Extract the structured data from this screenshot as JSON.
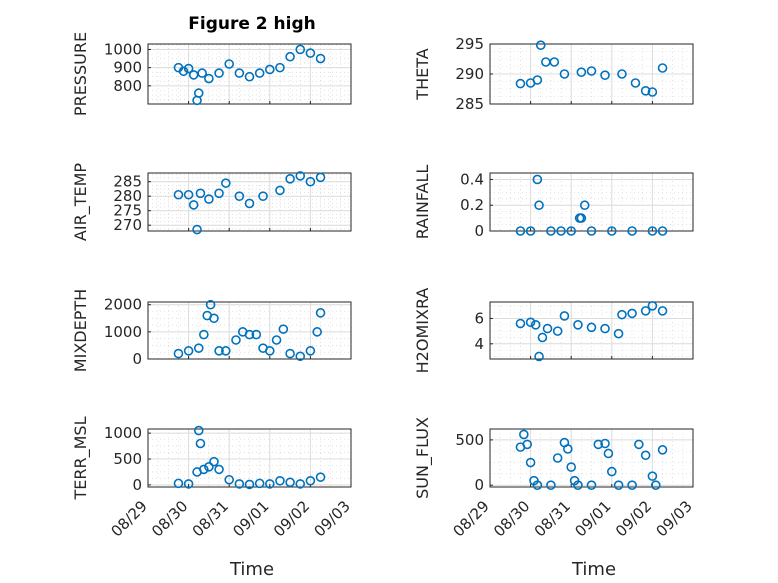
{
  "figure": {
    "title": "Figure 2 high",
    "xlabel": "Time",
    "marker_color": "#0072BD",
    "grid": "major and minor dotted",
    "x_ticks": [
      "08/29",
      "08/30",
      "08/31",
      "09/01",
      "09/02",
      "09/03"
    ]
  },
  "chart_data": [
    {
      "id": "pressure",
      "type": "scatter",
      "ylabel": "PRESSURE",
      "title": "Figure 2 high",
      "ylim": [
        700,
        1030
      ],
      "yticks": [
        800,
        900,
        1000
      ],
      "x": [
        "08/29 18:00",
        "08/29 21:00",
        "08/30 00:00",
        "08/30 03:00",
        "08/30 05:00",
        "08/30 06:00",
        "08/30 08:00",
        "08/30 12:00",
        "08/30 18:00",
        "08/31 00:00",
        "08/31 06:00",
        "08/31 12:00",
        "08/31 18:00",
        "09/01 00:00",
        "09/01 06:00",
        "09/01 12:00",
        "09/01 18:00",
        "09/02 00:00",
        "09/02 06:00"
      ],
      "y": [
        900,
        880,
        895,
        860,
        720,
        760,
        870,
        840,
        870,
        920,
        870,
        850,
        870,
        890,
        900,
        960,
        1000,
        980,
        950
      ]
    },
    {
      "id": "theta",
      "type": "scatter",
      "ylabel": "THETA",
      "ylim": [
        285,
        295
      ],
      "yticks": [
        285,
        290,
        295
      ],
      "x": [
        "08/29 18:00",
        "08/30 00:00",
        "08/30 04:00",
        "08/30 06:00",
        "08/30 09:00",
        "08/30 14:00",
        "08/30 20:00",
        "08/31 06:00",
        "08/31 12:00",
        "08/31 20:00",
        "09/01 06:00",
        "09/01 14:00",
        "09/01 20:00",
        "09/02 00:00",
        "09/02 06:00"
      ],
      "y": [
        288.4,
        288.5,
        289,
        294.8,
        292,
        292,
        290,
        290.3,
        290.5,
        289.8,
        290,
        288.5,
        287.2,
        287,
        291
      ]
    },
    {
      "id": "air_temp",
      "type": "scatter",
      "ylabel": "AIR_TEMP",
      "ylim": [
        268,
        288
      ],
      "yticks": [
        270,
        275,
        280,
        285
      ],
      "x": [
        "08/29 18:00",
        "08/30 00:00",
        "08/30 03:00",
        "08/30 05:00",
        "08/30 07:00",
        "08/30 12:00",
        "08/30 18:00",
        "08/30 22:00",
        "08/31 06:00",
        "08/31 12:00",
        "08/31 20:00",
        "09/01 06:00",
        "09/01 12:00",
        "09/01 18:00",
        "09/02 00:00",
        "09/02 06:00"
      ],
      "y": [
        280.5,
        280.5,
        277,
        268.5,
        281,
        279,
        281,
        284.5,
        280,
        277.5,
        280,
        282,
        286,
        287,
        285,
        286.5
      ]
    },
    {
      "id": "rainfall",
      "type": "scatter",
      "ylabel": "RAINFALL",
      "ylim": [
        0,
        0.45
      ],
      "yticks": [
        0,
        0.2,
        0.4
      ],
      "x": [
        "08/29 18:00",
        "08/30 00:00",
        "08/30 04:00",
        "08/30 05:00",
        "08/30 12:00",
        "08/30 18:00",
        "08/31 00:00",
        "08/31 05:00",
        "08/31 06:00",
        "08/31 08:00",
        "08/31 12:00",
        "09/01 00:00",
        "09/01 12:00",
        "09/02 00:00",
        "09/02 06:00"
      ],
      "y": [
        0,
        0,
        0.4,
        0.2,
        0,
        0,
        0,
        0.1,
        0.1,
        0.2,
        0,
        0,
        0,
        0,
        0
      ]
    },
    {
      "id": "mixdepth",
      "type": "scatter",
      "ylabel": "MIXDEPTH",
      "ylim": [
        0,
        2100
      ],
      "yticks": [
        0,
        1000,
        2000
      ],
      "x": [
        "08/29 18:00",
        "08/30 00:00",
        "08/30 06:00",
        "08/30 09:00",
        "08/30 11:00",
        "08/30 13:00",
        "08/30 15:00",
        "08/30 18:00",
        "08/30 22:00",
        "08/31 04:00",
        "08/31 08:00",
        "08/31 12:00",
        "08/31 16:00",
        "08/31 20:00",
        "09/01 00:00",
        "09/01 04:00",
        "09/01 08:00",
        "09/01 12:00",
        "09/01 18:00",
        "09/02 00:00",
        "09/02 04:00",
        "09/02 06:00"
      ],
      "y": [
        200,
        300,
        400,
        900,
        1600,
        2000,
        1500,
        300,
        300,
        700,
        1000,
        900,
        900,
        400,
        300,
        700,
        1100,
        200,
        100,
        300,
        1000,
        1700
      ]
    },
    {
      "id": "h2omixra",
      "type": "scatter",
      "ylabel": "H2OMIXRA",
      "ylim": [
        2.8,
        7.3
      ],
      "yticks": [
        4,
        6
      ],
      "x": [
        "08/29 18:00",
        "08/30 00:00",
        "08/30 03:00",
        "08/30 05:00",
        "08/30 07:00",
        "08/30 10:00",
        "08/30 16:00",
        "08/30 20:00",
        "08/31 04:00",
        "08/31 12:00",
        "08/31 20:00",
        "09/01 04:00",
        "09/01 06:00",
        "09/01 12:00",
        "09/01 20:00",
        "09/02 00:00",
        "09/02 06:00"
      ],
      "y": [
        5.6,
        5.7,
        5.5,
        3.0,
        4.5,
        5.2,
        5.0,
        6.2,
        5.5,
        5.3,
        5.2,
        4.8,
        6.3,
        6.4,
        6.6,
        7.0,
        6.6
      ]
    },
    {
      "id": "terr_msl",
      "type": "scatter",
      "ylabel": "TERR_MSL",
      "ylim": [
        -40,
        1080
      ],
      "yticks": [
        0,
        500,
        1000
      ],
      "x": [
        "08/29 18:00",
        "08/30 00:00",
        "08/30 05:00",
        "08/30 06:00",
        "08/30 07:00",
        "08/30 09:00",
        "08/30 12:00",
        "08/30 15:00",
        "08/30 18:00",
        "08/31 00:00",
        "08/31 06:00",
        "08/31 12:00",
        "08/31 18:00",
        "09/01 00:00",
        "09/01 06:00",
        "09/01 12:00",
        "09/01 18:00",
        "09/02 00:00",
        "09/02 06:00"
      ],
      "y": [
        30,
        20,
        250,
        1050,
        800,
        300,
        350,
        450,
        300,
        100,
        20,
        10,
        30,
        20,
        80,
        50,
        20,
        80,
        150
      ]
    },
    {
      "id": "sun_flux",
      "type": "scatter",
      "ylabel": "SUN_FLUX",
      "ylim": [
        -20,
        620
      ],
      "yticks": [
        0,
        500
      ],
      "x": [
        "08/29 18:00",
        "08/29 20:00",
        "08/29 22:00",
        "08/30 00:00",
        "08/30 02:00",
        "08/30 04:00",
        "08/30 12:00",
        "08/30 16:00",
        "08/30 20:00",
        "08/30 22:00",
        "08/31 00:00",
        "08/31 02:00",
        "08/31 04:00",
        "08/31 12:00",
        "08/31 16:00",
        "08/31 20:00",
        "08/31 22:00",
        "09/01 00:00",
        "09/01 04:00",
        "09/01 12:00",
        "09/01 16:00",
        "09/01 20:00",
        "09/02 00:00",
        "09/02 02:00",
        "09/02 06:00"
      ],
      "y": [
        420,
        560,
        450,
        250,
        50,
        0,
        0,
        300,
        470,
        400,
        200,
        50,
        0,
        0,
        450,
        460,
        350,
        150,
        0,
        0,
        450,
        330,
        100,
        0,
        390
      ]
    }
  ]
}
